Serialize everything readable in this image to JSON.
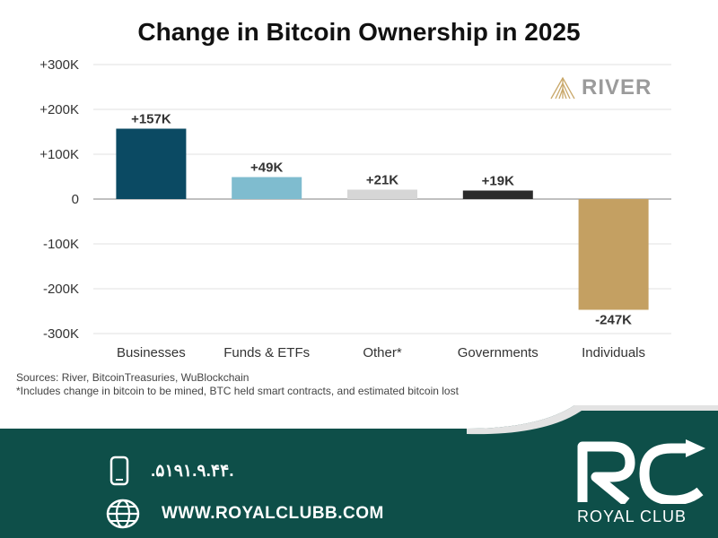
{
  "chart_data": {
    "type": "bar",
    "title": "Change in Bitcoin Ownership in 2025",
    "categories": [
      "Businesses",
      "Funds & ETFs",
      "Other*",
      "Governments",
      "Individuals"
    ],
    "values": [
      157000,
      49000,
      21000,
      19000,
      -247000
    ],
    "value_labels": [
      "+157K",
      "+49K",
      "+21K",
      "+19K",
      "-247K"
    ],
    "colors": [
      "#0b4a63",
      "#7fbccf",
      "#d6d6d6",
      "#2b2b2b",
      "#c4a062"
    ],
    "ylim": [
      -300000,
      300000
    ],
    "yticks": [
      300000,
      200000,
      100000,
      0,
      -100000,
      -200000,
      -300000
    ],
    "ytick_labels": [
      "+300K",
      "+200K",
      "+100K",
      "0",
      "-100K",
      "-200K",
      "-300K"
    ],
    "xlabel": "",
    "ylabel": "",
    "grid": true
  },
  "sources": {
    "line1": "Sources: River, BitcoinTreasuries, WuBlockchain",
    "line2": "*Includes change in bitcoin to be mined, BTC held smart contracts, and estimated bitcoin lost"
  },
  "brand": {
    "river": "RIVER"
  },
  "footer": {
    "phone": ".۵۱۹۱.۹.۴۴.",
    "website": "WWW.ROYALCLUBB.COM",
    "company": "ROYAL CLUB",
    "bg_color": "#0e4f49"
  }
}
